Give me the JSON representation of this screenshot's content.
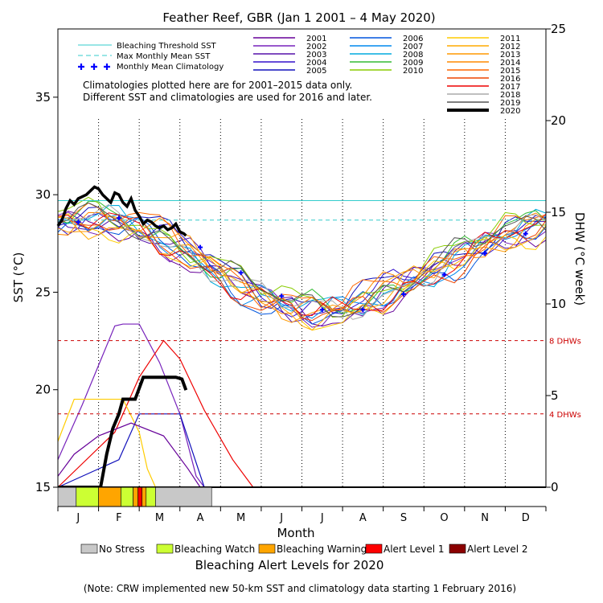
{
  "colors": {
    "no_stress": "#c8c8c8",
    "bleaching_watch": "#ccff33",
    "bleaching_warning": "#ffa500",
    "alert1": "#ff0000",
    "alert2": "#8b0000",
    "threshold": "#33cccc",
    "mmm": "#33cccc",
    "climatology": "#0000ff",
    "dhw_ref": "#cc0000"
  },
  "chart_data": {
    "type": "line",
    "title": "Feather Reef, GBR      (Jan 1 2001 – 4 May 2020)",
    "xlabel": "Month",
    "ylabel_left": "SST (°C)",
    "ylabel_right": "DHW (°C week)",
    "x_ticks": [
      "J",
      "F",
      "M",
      "A",
      "M",
      "J",
      "J",
      "A",
      "S",
      "O",
      "N",
      "D"
    ],
    "y_left_ticks": [
      "15",
      "20",
      "25",
      "30",
      "35"
    ],
    "y_left_lim": [
      15,
      38.5
    ],
    "y_right_ticks": [
      "0",
      "5",
      "10",
      "15",
      "20",
      "25"
    ],
    "y_right_lim": [
      0,
      25
    ],
    "bleaching_threshold_sst": 29.7,
    "max_monthly_mean_sst": 28.7,
    "dhw_reference_lines": [
      {
        "value": 8,
        "label": "8 DHWs"
      },
      {
        "value": 4,
        "label": "4 DHWs"
      }
    ],
    "notes": [
      "Climatologies plotted here are for 2001–2015 data only.",
      "Different SST and climatologies are used for 2016 and later."
    ],
    "legend_lines": [
      {
        "label": "Bleaching Threshold SST",
        "style": "solid",
        "color": "#33cccc"
      },
      {
        "label": "Max Monthly Mean SST",
        "style": "dashed",
        "color": "#33cccc"
      },
      {
        "label": "Monthly Mean Climatology",
        "style": "plus",
        "color": "#0000ff"
      }
    ],
    "climatology": [
      28.6,
      28.8,
      28.3,
      27.3,
      26.0,
      24.8,
      24.1,
      24.1,
      24.9,
      25.9,
      27.0,
      28.0
    ],
    "years": [
      {
        "name": "2001",
        "color": "#660099"
      },
      {
        "name": "2002",
        "color": "#7722bb"
      },
      {
        "name": "2003",
        "color": "#5511aa"
      },
      {
        "name": "2004",
        "color": "#3311cc"
      },
      {
        "name": "2005",
        "color": "#1111bb"
      },
      {
        "name": "2006",
        "color": "#0055dd"
      },
      {
        "name": "2007",
        "color": "#0088ee"
      },
      {
        "name": "2008",
        "color": "#00aadd"
      },
      {
        "name": "2009",
        "color": "#33bb33"
      },
      {
        "name": "2010",
        "color": "#88cc00"
      },
      {
        "name": "2011",
        "color": "#ffcc00"
      },
      {
        "name": "2012",
        "color": "#ffaa00"
      },
      {
        "name": "2013",
        "color": "#ff9900"
      },
      {
        "name": "2014",
        "color": "#ff8800"
      },
      {
        "name": "2015",
        "color": "#ff6600"
      },
      {
        "name": "2016",
        "color": "#ee4400"
      },
      {
        "name": "2017",
        "color": "#ee0000"
      },
      {
        "name": "2018",
        "color": "#aaaaaa"
      },
      {
        "name": "2019",
        "color": "#555555"
      },
      {
        "name": "2020",
        "color": "#000000"
      }
    ],
    "sst_2020": [
      [
        0,
        28.4
      ],
      [
        0.1,
        28.7
      ],
      [
        0.2,
        29.3
      ],
      [
        0.3,
        29.7
      ],
      [
        0.4,
        29.5
      ],
      [
        0.5,
        29.8
      ],
      [
        0.6,
        29.9
      ],
      [
        0.7,
        30.0
      ],
      [
        0.8,
        30.2
      ],
      [
        0.9,
        30.4
      ],
      [
        1.0,
        30.3
      ],
      [
        1.1,
        30.0
      ],
      [
        1.2,
        29.8
      ],
      [
        1.3,
        29.6
      ],
      [
        1.4,
        30.1
      ],
      [
        1.5,
        30.0
      ],
      [
        1.6,
        29.6
      ],
      [
        1.7,
        29.4
      ],
      [
        1.8,
        29.8
      ],
      [
        1.9,
        29.2
      ],
      [
        2.0,
        28.9
      ],
      [
        2.1,
        28.5
      ],
      [
        2.2,
        28.7
      ],
      [
        2.3,
        28.6
      ],
      [
        2.4,
        28.4
      ],
      [
        2.5,
        28.3
      ],
      [
        2.6,
        28.4
      ],
      [
        2.7,
        28.2
      ],
      [
        2.8,
        28.3
      ],
      [
        2.9,
        28.5
      ],
      [
        3.0,
        28.1
      ],
      [
        3.1,
        28.0
      ],
      [
        3.15,
        27.9
      ]
    ],
    "dhw_2020": [
      [
        0,
        0
      ],
      [
        1.05,
        0
      ],
      [
        1.2,
        1.8
      ],
      [
        1.35,
        3.2
      ],
      [
        1.5,
        4.0
      ],
      [
        1.6,
        4.8
      ],
      [
        1.9,
        4.8
      ],
      [
        2.1,
        6.0
      ],
      [
        2.35,
        6.0
      ],
      [
        2.9,
        6.0
      ],
      [
        3.05,
        5.9
      ],
      [
        3.15,
        5.3
      ]
    ],
    "sst_year_samples": [
      {
        "year": "2017",
        "values": [
          28.7,
          29.4,
          29.8,
          30.1,
          29.4,
          28.7,
          27.7,
          26.5,
          25.6,
          25.0,
          24.6,
          24.5,
          25.1,
          26.1,
          27.3,
          28.6
        ]
      },
      {
        "year": "2016",
        "values": [
          28.6,
          29.2,
          29.9,
          30.2,
          29.9,
          28.9,
          27.9,
          26.7,
          25.9,
          25.0,
          24.7,
          24.6,
          25.2,
          26.4,
          27.7,
          28.9
        ]
      },
      {
        "year": "2008",
        "values": [
          28.2,
          28.7,
          28.5,
          28.0,
          27.4,
          26.2,
          25.2,
          24.4,
          23.9,
          23.7,
          23.6,
          24.0,
          24.9,
          26.1,
          27.4,
          28.7
        ]
      },
      {
        "year": "2002",
        "values": [
          28.3,
          29.4,
          30.6,
          29.9,
          29.1,
          28.2,
          27.1,
          25.9,
          24.9,
          24.3,
          24.1,
          24.2,
          25.0,
          26.0,
          27.3,
          28.4
        ]
      }
    ],
    "dhw_year_samples": [
      {
        "year": "2002",
        "points": [
          [
            0,
            1.5
          ],
          [
            0.6,
            4.5
          ],
          [
            1.4,
            8.8
          ],
          [
            1.6,
            8.9
          ],
          [
            2.0,
            8.9
          ],
          [
            2.5,
            6.8
          ],
          [
            3.0,
            4.0
          ],
          [
            3.4,
            0.6
          ],
          [
            3.6,
            0
          ]
        ]
      },
      {
        "year": "2017",
        "points": [
          [
            0,
            0
          ],
          [
            1.4,
            3.0
          ],
          [
            2.0,
            6.0
          ],
          [
            2.6,
            8.0
          ],
          [
            3.0,
            7.0
          ],
          [
            3.6,
            4.2
          ],
          [
            4.3,
            1.5
          ],
          [
            4.8,
            0
          ]
        ]
      },
      {
        "year": "2011",
        "points": [
          [
            0,
            2.5
          ],
          [
            0.4,
            4.8
          ],
          [
            1.6,
            4.8
          ],
          [
            2.0,
            3.0
          ],
          [
            2.2,
            1.0
          ],
          [
            2.4,
            0
          ]
        ]
      },
      {
        "year": "2005",
        "points": [
          [
            0,
            0
          ],
          [
            1.5,
            1.5
          ],
          [
            2.0,
            4.0
          ],
          [
            3.0,
            4.0
          ],
          [
            3.3,
            2.0
          ],
          [
            3.6,
            0
          ]
        ]
      },
      {
        "year": "2001",
        "points": [
          [
            0,
            0.6
          ],
          [
            0.4,
            1.8
          ],
          [
            1.0,
            2.8
          ],
          [
            1.8,
            3.5
          ],
          [
            2.6,
            2.8
          ],
          [
            3.2,
            1.0
          ],
          [
            3.5,
            0
          ]
        ]
      }
    ],
    "alert_bar_2020": [
      {
        "from": 0,
        "to": 0.45,
        "level": "no_stress"
      },
      {
        "from": 0.45,
        "to": 1.0,
        "level": "bleaching_watch"
      },
      {
        "from": 1.0,
        "to": 1.55,
        "level": "bleaching_warning"
      },
      {
        "from": 1.55,
        "to": 1.85,
        "level": "bleaching_watch"
      },
      {
        "from": 1.85,
        "to": 1.97,
        "level": "bleaching_warning"
      },
      {
        "from": 1.97,
        "to": 2.07,
        "level": "alert1"
      },
      {
        "from": 2.07,
        "to": 2.17,
        "level": "bleaching_warning"
      },
      {
        "from": 2.17,
        "to": 2.4,
        "level": "bleaching_watch"
      },
      {
        "from": 2.4,
        "to": 3.78,
        "level": "no_stress"
      }
    ],
    "alert_legend": [
      {
        "label": "No Stress",
        "key": "no_stress"
      },
      {
        "label": "Bleaching Watch",
        "key": "bleaching_watch"
      },
      {
        "label": "Bleaching Warning",
        "key": "bleaching_warning"
      },
      {
        "label": "Alert Level 1",
        "key": "alert1"
      },
      {
        "label": "Alert Level 2",
        "key": "alert2"
      }
    ],
    "alert_title": "Bleaching Alert Levels for 2020",
    "footnote": "(Note: CRW implemented new 50-km SST and climatology data starting 1 February 2016)"
  }
}
